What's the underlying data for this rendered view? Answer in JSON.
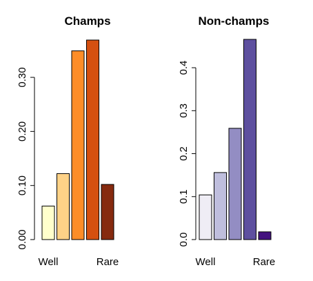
{
  "chart_data": [
    {
      "type": "bar",
      "title": "Champs",
      "categories": [
        "Well",
        "",
        "",
        "",
        "Rare"
      ],
      "values": [
        0.062,
        0.122,
        0.349,
        0.369,
        0.102
      ],
      "colors": [
        "#ffffcc",
        "#fed287",
        "#fd8d28",
        "#d55010",
        "#862a0f"
      ],
      "yticks": [
        0.0,
        0.1,
        0.2,
        0.3
      ],
      "ytick_labels": [
        "0.00",
        "0.10",
        "0.20",
        "0.30"
      ],
      "ylim": [
        0,
        0.369
      ],
      "xlabel": "",
      "ylabel": "",
      "grid": false
    },
    {
      "type": "bar",
      "title": "Non-champs",
      "categories": [
        "Well",
        "",
        "",
        "",
        "Rare"
      ],
      "values": [
        0.104,
        0.156,
        0.259,
        0.466,
        0.018
      ],
      "colors": [
        "#efedf5",
        "#bfbedd",
        "#938dc3",
        "#5e509f",
        "#44127f"
      ],
      "yticks": [
        0.0,
        0.1,
        0.2,
        0.3,
        0.4
      ],
      "ytick_labels": [
        "0.0",
        "0.1",
        "0.2",
        "0.3",
        "0.4"
      ],
      "ylim": [
        0,
        0.466
      ],
      "xlabel": "",
      "ylabel": "",
      "grid": false
    }
  ]
}
